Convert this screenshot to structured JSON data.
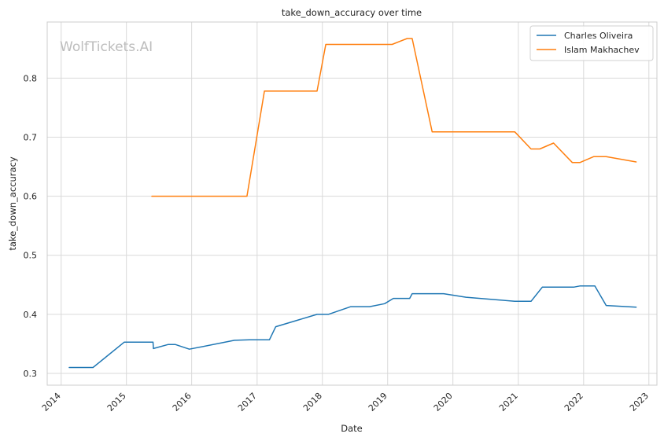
{
  "chart_data": {
    "type": "line",
    "title": "take_down_accuracy over time",
    "xlabel": "Date",
    "ylabel": "take_down_accuracy",
    "watermark": "WolfTickets.AI",
    "xlim": [
      "2013-10-15",
      "2023-02-15"
    ],
    "ylim": [
      0.28,
      0.895
    ],
    "x_ticks": [
      "2014",
      "2015",
      "2016",
      "2017",
      "2018",
      "2019",
      "2020",
      "2021",
      "2022",
      "2023"
    ],
    "y_ticks": [
      "0.3",
      "0.4",
      "0.5",
      "0.6",
      "0.7",
      "0.8"
    ],
    "grid": true,
    "legend_position": "top-right",
    "series": [
      {
        "name": "Charles Oliveira",
        "color": "#1f77b4",
        "points": [
          [
            "2014-02-15",
            0.31
          ],
          [
            "2014-06-28",
            0.31
          ],
          [
            "2014-12-20",
            0.353
          ],
          [
            "2015-05-30",
            0.353
          ],
          [
            "2015-06-01",
            0.342
          ],
          [
            "2015-08-23",
            0.349
          ],
          [
            "2015-10-01",
            0.349
          ],
          [
            "2015-12-19",
            0.341
          ],
          [
            "2016-08-27",
            0.356
          ],
          [
            "2016-11-19",
            0.357
          ],
          [
            "2017-03-11",
            0.357
          ],
          [
            "2017-04-15",
            0.379
          ],
          [
            "2017-12-02",
            0.4
          ],
          [
            "2018-02-03",
            0.4
          ],
          [
            "2018-06-09",
            0.413
          ],
          [
            "2018-09-22",
            0.413
          ],
          [
            "2018-12-15",
            0.418
          ],
          [
            "2019-02-02",
            0.427
          ],
          [
            "2019-05-04",
            0.427
          ],
          [
            "2019-05-18",
            0.435
          ],
          [
            "2019-11-10",
            0.435
          ],
          [
            "2020-03-14",
            0.429
          ],
          [
            "2020-12-12",
            0.422
          ],
          [
            "2021-03-13",
            0.422
          ],
          [
            "2021-05-15",
            0.446
          ],
          [
            "2021-11-06",
            0.446
          ],
          [
            "2021-12-11",
            0.448
          ],
          [
            "2022-03-05",
            0.448
          ],
          [
            "2022-05-07",
            0.415
          ],
          [
            "2022-10-22",
            0.412
          ]
        ]
      },
      {
        "name": "Islam Makhachev",
        "color": "#ff7f0e",
        "points": [
          [
            "2015-05-23",
            0.6
          ],
          [
            "2016-11-05",
            0.6
          ],
          [
            "2017-02-11",
            0.778
          ],
          [
            "2017-12-02",
            0.778
          ],
          [
            "2018-01-20",
            0.857
          ],
          [
            "2019-01-26",
            0.857
          ],
          [
            "2019-04-20",
            0.867
          ],
          [
            "2019-05-18",
            0.867
          ],
          [
            "2019-09-07",
            0.709
          ],
          [
            "2020-12-12",
            0.709
          ],
          [
            "2021-03-13",
            0.68
          ],
          [
            "2021-05-01",
            0.68
          ],
          [
            "2021-07-17",
            0.69
          ],
          [
            "2021-10-30",
            0.657
          ],
          [
            "2021-12-11",
            0.657
          ],
          [
            "2022-02-26",
            0.667
          ],
          [
            "2022-05-07",
            0.667
          ],
          [
            "2022-10-22",
            0.658
          ]
        ]
      }
    ]
  }
}
